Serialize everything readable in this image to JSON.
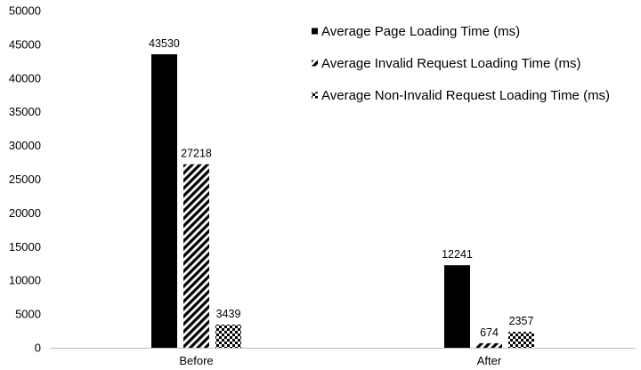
{
  "chart_data": {
    "type": "bar",
    "title": "",
    "xlabel": "",
    "ylabel": "",
    "categories": [
      "Before",
      "After"
    ],
    "ylim": [
      0,
      50000
    ],
    "yticks": [
      0,
      5000,
      10000,
      15000,
      20000,
      25000,
      30000,
      35000,
      40000,
      45000,
      50000
    ],
    "grid": false,
    "legend_position": "top-right",
    "series": [
      {
        "name": "Average Page Loading Time (ms)",
        "pattern": "solid",
        "color": "#000000",
        "values": [
          43530,
          12241
        ],
        "labels": [
          "43530",
          "12241"
        ]
      },
      {
        "name": "Average Invalid Request Loading Time (ms)",
        "pattern": "diagonal-stripes",
        "color": "#000000",
        "values": [
          27218,
          674
        ],
        "labels": [
          "27218",
          "674"
        ]
      },
      {
        "name": "Average Non-Invalid Request Loading Time (ms)",
        "pattern": "checkerboard",
        "color": "#000000",
        "values": [
          3439,
          2357
        ],
        "labels": [
          "3439",
          "2357"
        ]
      }
    ]
  }
}
